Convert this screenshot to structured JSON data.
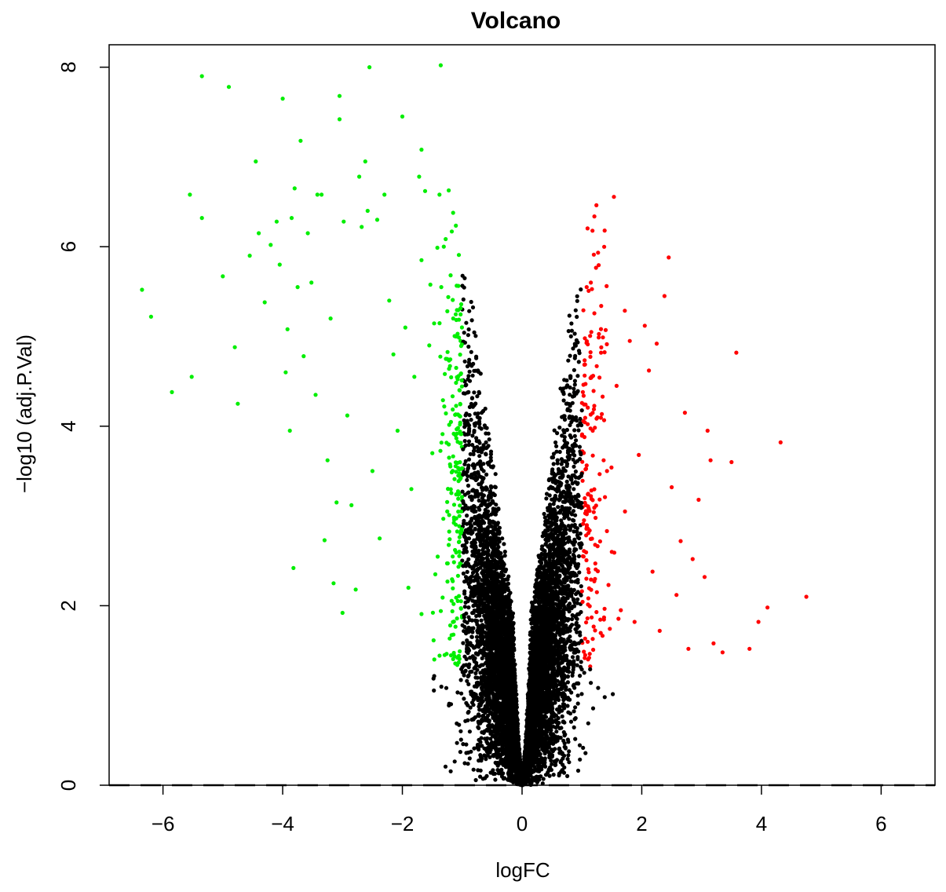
{
  "chart_data": {
    "type": "scatter",
    "title": "Volcano",
    "xlabel": "logFC",
    "ylabel": "−log10 (adj.P.Val)",
    "xlim": [
      -6.9,
      6.9
    ],
    "ylim": [
      0,
      8.25
    ],
    "xticks": [
      -6,
      -4,
      -2,
      0,
      2,
      4,
      6
    ],
    "xtick_labels": [
      "−6",
      "−4",
      "−2",
      "0",
      "2",
      "4",
      "6"
    ],
    "yticks": [
      0,
      2,
      4,
      6,
      8
    ],
    "ytick_labels": [
      "0",
      "2",
      "4",
      "6",
      "8"
    ],
    "grid": false,
    "colors": {
      "down": "#00ee00",
      "up": "#ff0000",
      "ns": "#000000"
    },
    "series": [
      {
        "values_role": "down",
        "points": [
          [
            -6.35,
            5.52
          ],
          [
            -6.2,
            5.22
          ],
          [
            -5.85,
            4.38
          ],
          [
            -5.52,
            4.55
          ],
          [
            -5.55,
            6.58
          ],
          [
            -5.35,
            7.9
          ],
          [
            -5.35,
            6.32
          ],
          [
            -4.9,
            7.78
          ],
          [
            -5.0,
            5.67
          ],
          [
            -4.8,
            4.88
          ],
          [
            -4.75,
            4.25
          ],
          [
            -4.55,
            5.9
          ],
          [
            -4.45,
            6.95
          ],
          [
            -4.4,
            6.15
          ],
          [
            -4.3,
            5.38
          ],
          [
            -4.2,
            6.02
          ],
          [
            -4.1,
            6.28
          ],
          [
            -4.05,
            5.8
          ],
          [
            -4.0,
            7.65
          ],
          [
            -3.95,
            4.6
          ],
          [
            -3.92,
            5.08
          ],
          [
            -3.88,
            3.95
          ],
          [
            -3.85,
            6.32
          ],
          [
            -3.82,
            2.42
          ],
          [
            -3.8,
            6.65
          ],
          [
            -3.75,
            5.55
          ],
          [
            -3.7,
            7.18
          ],
          [
            -3.65,
            4.78
          ],
          [
            -3.58,
            6.15
          ],
          [
            -3.52,
            5.6
          ],
          [
            -3.45,
            4.35
          ],
          [
            -3.42,
            6.58
          ],
          [
            -3.35,
            6.58
          ],
          [
            -3.3,
            2.73
          ],
          [
            -3.25,
            3.62
          ],
          [
            -3.2,
            5.2
          ],
          [
            -3.15,
            2.25
          ],
          [
            -3.1,
            3.15
          ],
          [
            -3.05,
            7.68
          ],
          [
            -3.05,
            7.42
          ],
          [
            -3.0,
            1.92
          ],
          [
            -2.98,
            6.28
          ],
          [
            -2.92,
            4.12
          ],
          [
            -2.85,
            3.12
          ],
          [
            -2.78,
            2.18
          ],
          [
            -2.72,
            6.78
          ],
          [
            -2.68,
            6.22
          ],
          [
            -2.62,
            6.95
          ],
          [
            -2.58,
            6.4
          ],
          [
            -2.55,
            8.0
          ],
          [
            -2.5,
            3.5
          ],
          [
            -2.42,
            6.3
          ],
          [
            -2.38,
            2.75
          ],
          [
            -2.3,
            6.58
          ],
          [
            -2.22,
            5.4
          ],
          [
            -2.15,
            4.8
          ],
          [
            -2.08,
            3.95
          ],
          [
            -2.0,
            7.45
          ],
          [
            -1.95,
            5.1
          ],
          [
            -1.9,
            2.2
          ],
          [
            -1.85,
            3.3
          ],
          [
            -1.8,
            4.55
          ],
          [
            -1.72,
            6.78
          ],
          [
            -1.68,
            5.85
          ],
          [
            -1.62,
            6.62
          ],
          [
            -1.55,
            4.9
          ],
          [
            -1.5,
            3.7
          ],
          [
            -1.45,
            2.35
          ],
          [
            -1.38,
            6.58
          ],
          [
            -1.35,
            5.55
          ],
          [
            -1.3,
            4.22
          ],
          [
            -1.25,
            3.05
          ],
          [
            -1.2,
            1.78
          ],
          [
            -1.15,
            5.2
          ],
          [
            -1.12,
            2.62
          ],
          [
            -1.1,
            4.65
          ],
          [
            -1.08,
            1.42
          ],
          [
            -1.05,
            3.52
          ],
          [
            -1.02,
            2.05
          ]
        ]
      },
      {
        "values_role": "up",
        "points": [
          [
            1.05,
            4.98
          ],
          [
            1.08,
            5.55
          ],
          [
            1.12,
            1.42
          ],
          [
            1.18,
            3.95
          ],
          [
            1.25,
            2.15
          ],
          [
            1.32,
            4.82
          ],
          [
            1.38,
            6.18
          ],
          [
            1.42,
            3.5
          ],
          [
            1.5,
            2.6
          ],
          [
            1.58,
            4.45
          ],
          [
            1.65,
            1.95
          ],
          [
            1.72,
            3.05
          ],
          [
            1.8,
            4.95
          ],
          [
            1.88,
            1.82
          ],
          [
            1.95,
            3.68
          ],
          [
            2.05,
            5.12
          ],
          [
            2.12,
            4.62
          ],
          [
            2.18,
            2.38
          ],
          [
            2.25,
            4.92
          ],
          [
            2.3,
            1.72
          ],
          [
            2.38,
            5.45
          ],
          [
            2.45,
            5.88
          ],
          [
            2.5,
            3.32
          ],
          [
            2.58,
            2.12
          ],
          [
            2.65,
            2.72
          ],
          [
            2.72,
            4.15
          ],
          [
            2.78,
            1.52
          ],
          [
            2.85,
            2.52
          ],
          [
            2.95,
            3.18
          ],
          [
            3.05,
            2.32
          ],
          [
            3.1,
            3.95
          ],
          [
            3.15,
            3.62
          ],
          [
            3.2,
            1.58
          ],
          [
            3.35,
            1.48
          ],
          [
            3.5,
            3.6
          ],
          [
            3.58,
            4.82
          ],
          [
            3.8,
            1.52
          ],
          [
            3.95,
            1.82
          ],
          [
            4.1,
            1.98
          ],
          [
            4.32,
            3.82
          ],
          [
            4.75,
            2.1
          ]
        ]
      }
    ]
  }
}
